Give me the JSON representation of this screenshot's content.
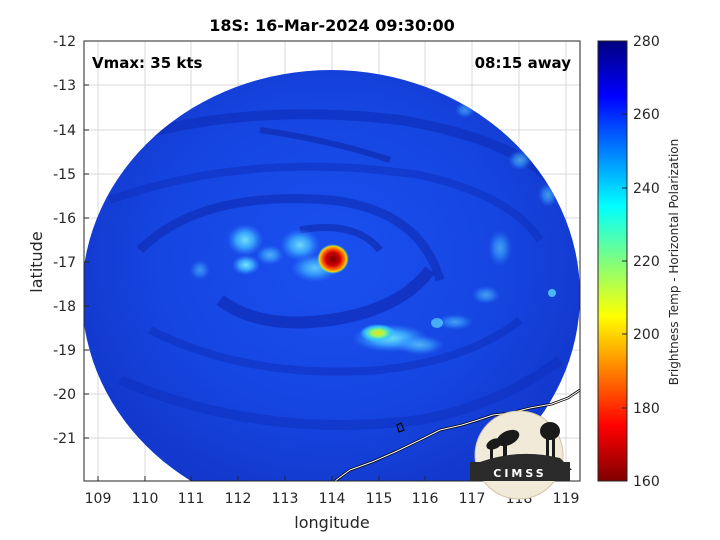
{
  "title": "18S: 16-Mar-2024 09:30:00",
  "vmax_label": "Vmax: 35 kts",
  "time_away_label": "08:15 away",
  "logo_text": "CIMSS",
  "colors": {
    "swath_base": "#1545e0",
    "swath_dark": "#0c23a8",
    "eye_core": "#8b0000",
    "cold_cloud": "#38c8ee"
  },
  "chart_data": {
    "type": "heatmap",
    "title": "18S: 16-Mar-2024 09:30:00",
    "xlabel": "longitude",
    "ylabel": "latitude",
    "xlim": [
      108.6,
      119.3
    ],
    "ylim": [
      -21.95,
      -12
    ],
    "xticks": [
      "109",
      "110",
      "111",
      "112",
      "113",
      "114",
      "115",
      "116",
      "117",
      "118",
      "119"
    ],
    "yticks": [
      "-12",
      "-13",
      "-14",
      "-15",
      "-16",
      "-17",
      "-18",
      "-19",
      "-20",
      "-21"
    ],
    "grid": true,
    "colorbar": {
      "label": "Brightness Temp - Horizontal Polarization",
      "range": [
        160,
        280
      ],
      "ticks": [
        "280",
        "260",
        "240",
        "220",
        "200",
        "180",
        "160"
      ],
      "colormap": "jet"
    },
    "features": [
      {
        "name": "storm center",
        "lon": 113.95,
        "lat": -16.95,
        "tb": 165
      },
      {
        "name": "cold band south",
        "lon": 114.9,
        "lat": -18.7,
        "tb": 215
      },
      {
        "name": "cold band west",
        "lon": 112.3,
        "lat": -16.9,
        "tb": 238
      }
    ]
  }
}
